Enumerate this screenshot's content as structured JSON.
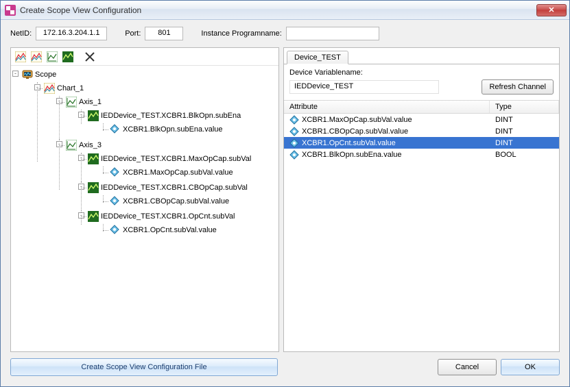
{
  "colors": {
    "selection_bg": "#3874d1",
    "selection_fg": "#ffffff",
    "panel_border": "#b9b9b9",
    "close_btn_bg": "#c13c39"
  },
  "window": {
    "title": "Create Scope View Configuration",
    "close_glyph": "✕"
  },
  "form": {
    "netid_label": "NetID:",
    "netid_value": "172.16.3.204.1.1",
    "port_label": "Port:",
    "port_value": "801",
    "instance_label": "Instance Programname:",
    "instance_value": ""
  },
  "toolbar": {
    "btn1": "scan-scope",
    "btn2": "scan-chart",
    "btn3": "scan-axis",
    "btn4": "scan-channel",
    "btn5": "delete"
  },
  "tree": {
    "scope_label": "Scope",
    "chart_label": "Chart_1",
    "axis1_label": "Axis_1",
    "axis1_dev_label": "IEDDevice_TEST.XCBR1.BlkOpn.subEna",
    "axis1_var_label": "XCBR1.BlkOpn.subEna.value",
    "axis3_label": "Axis_3",
    "axis3_dev1_label": "IEDDevice_TEST.XCBR1.MaxOpCap.subVal",
    "axis3_var1_label": "XCBR1.MaxOpCap.subVal.value",
    "axis3_dev2_label": "IEDDevice_TEST.XCBR1.CBOpCap.subVal",
    "axis3_var2_label": "XCBR1.CBOpCap.subVal.value",
    "axis3_dev3_label": "IEDDevice_TEST.XCBR1.OpCnt.subVal",
    "axis3_var3_label": "XCBR1.OpCnt.subVal.value"
  },
  "right_panel": {
    "tab_label": "Device_TEST",
    "device_varname_label": "Device Variablename:",
    "device_varname_value": "IEDDevice_TEST",
    "refresh_label": "Refresh Channel",
    "header_attr": "Attribute",
    "header_type": "Type",
    "rows": [
      {
        "attr": "XCBR1.MaxOpCap.subVal.value",
        "type": "DINT",
        "selected": false
      },
      {
        "attr": "XCBR1.CBOpCap.subVal.value",
        "type": "DINT",
        "selected": false
      },
      {
        "attr": "XCBR1.OpCnt.subVal.value",
        "type": "DINT",
        "selected": true
      },
      {
        "attr": "XCBR1.BlkOpn.subEna.value",
        "type": "BOOL",
        "selected": false
      }
    ]
  },
  "footer": {
    "create_label": "Create Scope View Configuration File",
    "cancel_label": "Cancel",
    "ok_label": "OK"
  }
}
